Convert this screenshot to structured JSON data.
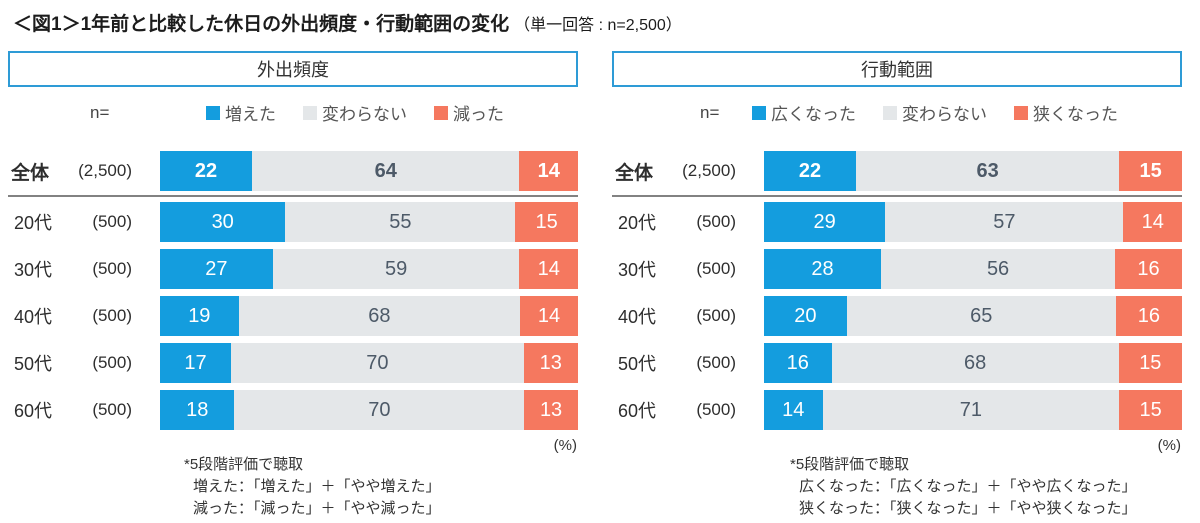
{
  "title": {
    "main": "＜図1＞1年前と比較した休日の外出頻度・行動範囲の変化",
    "suffix": "（単一回答 : n=2,500）"
  },
  "colors": {
    "accent_border": "#2E9BD6",
    "series": [
      "#149DDE",
      "#E4E7E9",
      "#F5785F"
    ],
    "series_text": [
      "#FFFFFF",
      "#4D5A68",
      "#FFFFFF"
    ],
    "separator": "#828282"
  },
  "panels": [
    {
      "header": "外出頻度",
      "n_label": "n=",
      "legend": [
        "増えた",
        "変わらない",
        "減った"
      ],
      "rows": [
        {
          "name": "全体",
          "n": "(2,500)",
          "values": [
            22,
            64,
            14
          ],
          "total": true
        },
        {
          "name": "20代",
          "n": "(500)",
          "values": [
            30,
            55,
            15
          ]
        },
        {
          "name": "30代",
          "n": "(500)",
          "values": [
            27,
            59,
            14
          ]
        },
        {
          "name": "40代",
          "n": "(500)",
          "values": [
            19,
            68,
            14
          ]
        },
        {
          "name": "50代",
          "n": "(500)",
          "values": [
            17,
            70,
            13
          ]
        },
        {
          "name": "60代",
          "n": "(500)",
          "values": [
            18,
            70,
            13
          ]
        }
      ],
      "unit_label": "(%)",
      "footnote": [
        "*5段階評価で聴取",
        "増えた：「増えた」＋「やや増えた」",
        "減った：「減った」＋「やや減った」"
      ]
    },
    {
      "header": "行動範囲",
      "n_label": "n=",
      "legend": [
        "広くなった",
        "変わらない",
        "狭くなった"
      ],
      "rows": [
        {
          "name": "全体",
          "n": "(2,500)",
          "values": [
            22,
            63,
            15
          ],
          "total": true
        },
        {
          "name": "20代",
          "n": "(500)",
          "values": [
            29,
            57,
            14
          ]
        },
        {
          "name": "30代",
          "n": "(500)",
          "values": [
            28,
            56,
            16
          ]
        },
        {
          "name": "40代",
          "n": "(500)",
          "values": [
            20,
            65,
            16
          ]
        },
        {
          "name": "50代",
          "n": "(500)",
          "values": [
            16,
            68,
            15
          ]
        },
        {
          "name": "60代",
          "n": "(500)",
          "values": [
            14,
            71,
            15
          ]
        }
      ],
      "unit_label": "(%)",
      "footnote": [
        "*5段階評価で聴取",
        "広くなった：「広くなった」＋「やや広くなった」",
        "狭くなった：「狭くなった」＋「やや狭くなった」"
      ]
    }
  ],
  "chart_data": [
    {
      "type": "bar",
      "stacked": true,
      "orientation": "horizontal",
      "title": "外出頻度",
      "categories": [
        "全体 (2,500)",
        "20代 (500)",
        "30代 (500)",
        "40代 (500)",
        "50代 (500)",
        "60代 (500)"
      ],
      "series": [
        {
          "name": "増えた",
          "color": "#149DDE",
          "values": [
            22,
            30,
            27,
            19,
            17,
            18
          ]
        },
        {
          "name": "変わらない",
          "color": "#E4E7E9",
          "values": [
            64,
            55,
            59,
            68,
            70,
            70
          ]
        },
        {
          "name": "減った",
          "color": "#F5785F",
          "values": [
            14,
            15,
            14,
            14,
            13,
            13
          ]
        }
      ],
      "unit": "%",
      "xlim": [
        0,
        100
      ],
      "legend_position": "top",
      "grid": false
    },
    {
      "type": "bar",
      "stacked": true,
      "orientation": "horizontal",
      "title": "行動範囲",
      "categories": [
        "全体 (2,500)",
        "20代 (500)",
        "30代 (500)",
        "40代 (500)",
        "50代 (500)",
        "60代 (500)"
      ],
      "series": [
        {
          "name": "広くなった",
          "color": "#149DDE",
          "values": [
            22,
            29,
            28,
            20,
            16,
            14
          ]
        },
        {
          "name": "変わらない",
          "color": "#E4E7E9",
          "values": [
            63,
            57,
            56,
            65,
            68,
            71
          ]
        },
        {
          "name": "狭くなった",
          "color": "#F5785F",
          "values": [
            15,
            14,
            16,
            16,
            15,
            15
          ]
        }
      ],
      "unit": "%",
      "xlim": [
        0,
        100
      ],
      "legend_position": "top",
      "grid": false
    }
  ]
}
